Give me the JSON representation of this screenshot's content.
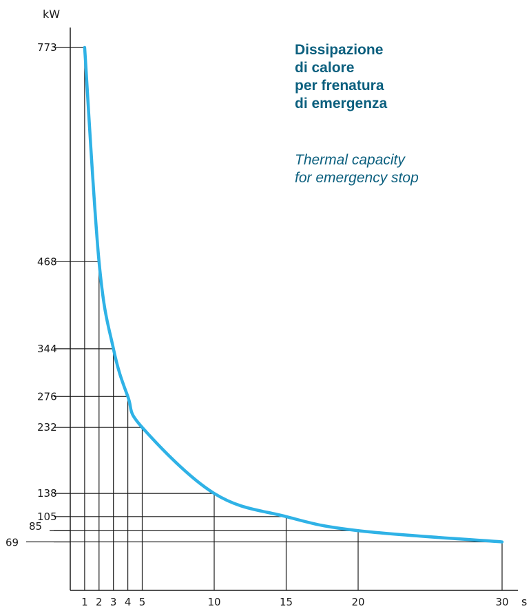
{
  "colors": {
    "curve": "#2fb2e6",
    "text_accent": "#0b5f7e",
    "axis": "#1a1a1a"
  },
  "title_lines": [
    "Dissipazione",
    "di calore",
    "per frenatura",
    "di emergenza"
  ],
  "subtitle_lines": [
    "Thermal capacity",
    "for emergency stop"
  ],
  "chart_data": {
    "type": "line",
    "ylabel": "kW",
    "xlabel": "s",
    "x": [
      1,
      2,
      3,
      4,
      5,
      10,
      15,
      20,
      30
    ],
    "series": [
      {
        "values": [
          773,
          468,
          344,
          276,
          232,
          138,
          105,
          85,
          69
        ]
      }
    ],
    "x_tick_labels": [
      "1",
      "2",
      "3",
      "4",
      "5",
      "10",
      "15",
      "20",
      "30"
    ],
    "y_tick_labels": [
      "773",
      "468",
      "344",
      "276",
      "232",
      "138",
      "105",
      "85",
      "69"
    ],
    "xlim": [
      0,
      31
    ],
    "ylim": [
      0,
      800
    ],
    "grid": "drop lines from each labeled point to both axes",
    "legend": "none"
  }
}
